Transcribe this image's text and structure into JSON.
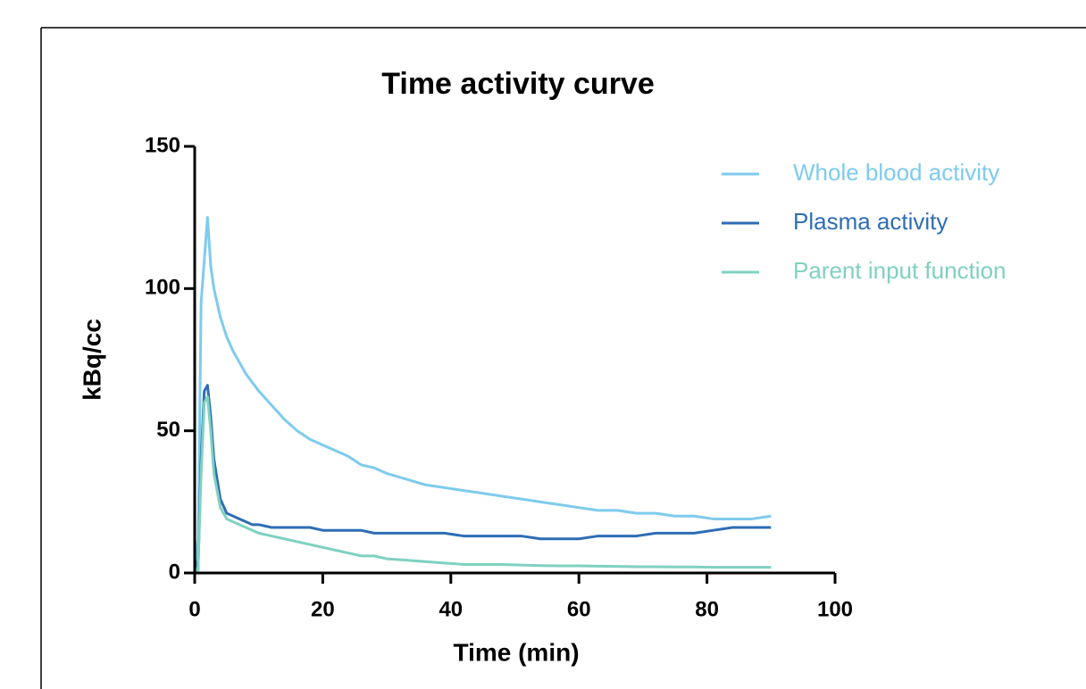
{
  "chart_data": {
    "type": "line",
    "title": "Time activity curve",
    "x_label": "Time (min)",
    "y_label": "kBq/cc",
    "x": [
      0,
      0.5,
      1,
      1.5,
      2,
      2.5,
      3,
      4,
      5,
      6,
      7,
      8,
      9,
      10,
      12,
      14,
      16,
      18,
      20,
      22,
      24,
      26,
      28,
      30,
      33,
      36,
      39,
      42,
      45,
      48,
      51,
      54,
      57,
      60,
      63,
      66,
      69,
      72,
      75,
      78,
      81,
      84,
      87,
      90
    ],
    "series": [
      {
        "name": "Whole blood activity",
        "color": "#7ecbee",
        "values": [
          12,
          2,
          95,
          110,
          125,
          108,
          100,
          90,
          83,
          78,
          74,
          70,
          67,
          64,
          59,
          54,
          50,
          47,
          45,
          43,
          41,
          38,
          37,
          35,
          33,
          31,
          30,
          29,
          28,
          27,
          26,
          25,
          24,
          23,
          22,
          22,
          21,
          21,
          20,
          20,
          19,
          19,
          19,
          20
        ]
      },
      {
        "name": "Plasma activity",
        "color": "#2e6db4",
        "values": [
          5,
          0,
          40,
          64,
          66,
          55,
          40,
          26,
          21,
          20,
          19,
          18,
          17,
          17,
          16,
          16,
          16,
          16,
          15,
          15,
          15,
          15,
          14,
          14,
          14,
          14,
          14,
          13,
          13,
          13,
          13,
          12,
          12,
          12,
          13,
          13,
          13,
          14,
          14,
          14,
          15,
          16,
          16,
          16
        ]
      },
      {
        "name": "Parent input function",
        "color": "#7fd1c0",
        "values": [
          2,
          0,
          35,
          60,
          62,
          50,
          35,
          23,
          19,
          18,
          17,
          16,
          15,
          14,
          13,
          12,
          11,
          10,
          9,
          8,
          7,
          6,
          6,
          5,
          4.5,
          4,
          3.5,
          3,
          3,
          3,
          2.8,
          2.6,
          2.5,
          2.5,
          2.4,
          2.3,
          2.2,
          2.2,
          2.1,
          2.1,
          2,
          2,
          2,
          2
        ]
      }
    ],
    "xlim": [
      0,
      100
    ],
    "xticks": [
      0,
      20,
      40,
      60,
      80,
      100
    ],
    "ylim": [
      0,
      150
    ],
    "yticks": [
      0,
      50,
      100,
      150
    ],
    "legend": "upper-right"
  }
}
